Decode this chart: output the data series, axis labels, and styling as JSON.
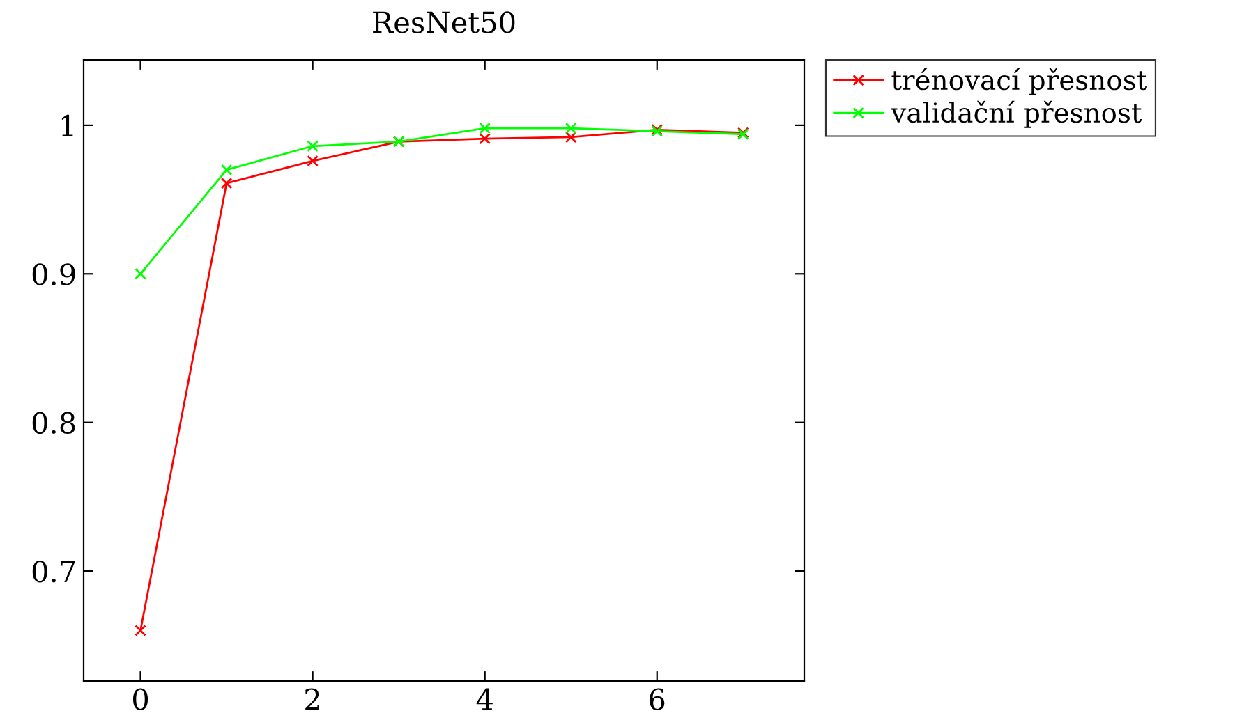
{
  "chart_data": {
    "type": "line",
    "title": "ResNet50",
    "x": [
      0,
      1,
      2,
      3,
      4,
      5,
      6,
      7
    ],
    "series": [
      {
        "name": "trénovací přesnost",
        "color": "#ff0000",
        "values": [
          0.66,
          0.961,
          0.976,
          0.989,
          0.991,
          0.992,
          0.997,
          0.995
        ]
      },
      {
        "name": "validační přesnost",
        "color": "#00ff00",
        "values": [
          0.9,
          0.97,
          0.986,
          0.989,
          0.998,
          0.998,
          0.996,
          0.994
        ]
      }
    ],
    "xlim": [
      -0.66,
      7.71
    ],
    "ylim": [
      0.626,
      1.044
    ],
    "xticks": [
      0,
      2,
      4,
      6
    ],
    "yticks": [
      0.7,
      0.8,
      0.9,
      1
    ],
    "marker": "cross",
    "line_style": "solid",
    "grid": false,
    "legend": "top right"
  }
}
